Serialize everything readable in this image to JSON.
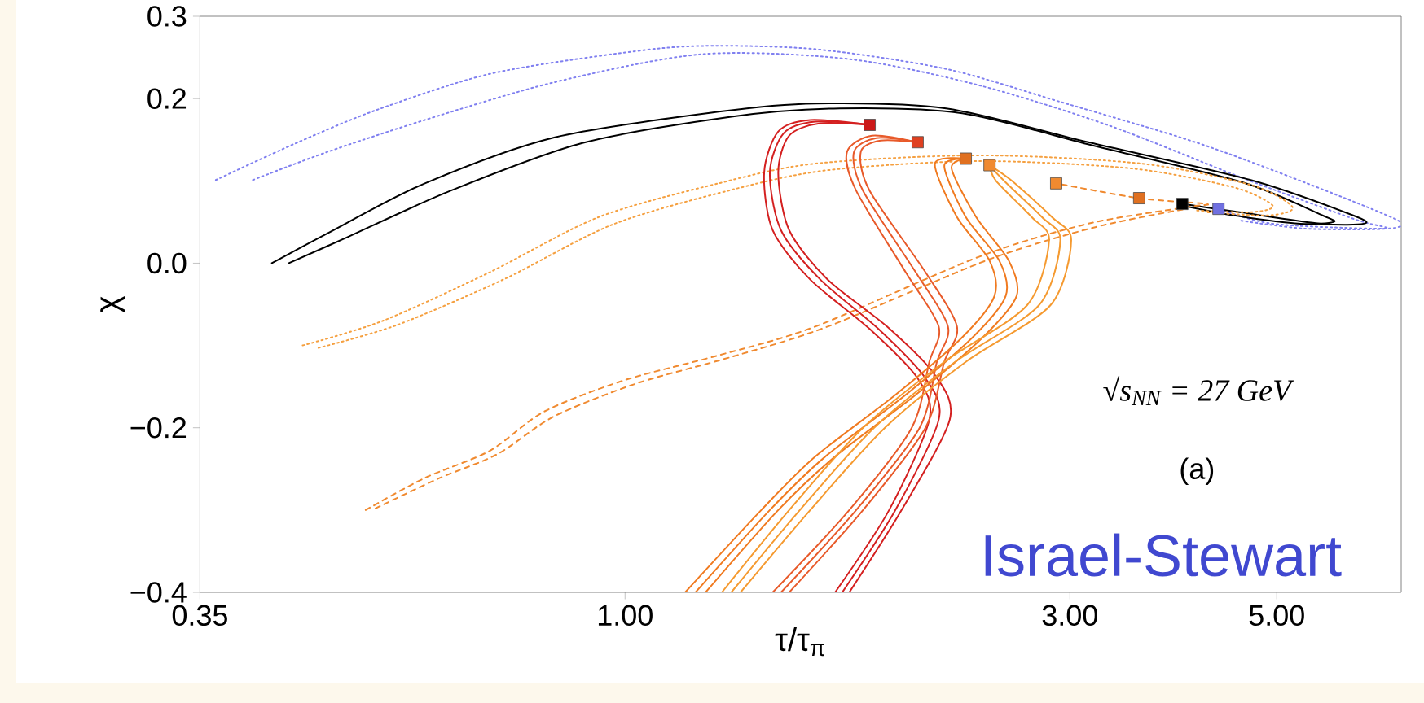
{
  "chart_data": {
    "type": "line",
    "xlabel": "τ/τ$_{π}$",
    "ylabel": "χ",
    "log": "x",
    "xlim": [
      0.35,
      6.8
    ],
    "ylim": [
      -0.4,
      0.3
    ],
    "xticks": [
      {
        "value": 0.35,
        "label": "0.35"
      },
      {
        "value": 1.0,
        "label": "1.00"
      },
      {
        "value": 3.0,
        "label": "3.00"
      },
      {
        "value": 5.0,
        "label": "5.00"
      }
    ],
    "yticks": [
      {
        "value": -0.4,
        "label": "−0.4"
      },
      {
        "value": -0.2,
        "label": "−0.2"
      },
      {
        "value": 0.0,
        "label": "0.0"
      },
      {
        "value": 0.2,
        "label": "0.2"
      },
      {
        "value": 0.3,
        "label": "0.3"
      }
    ],
    "annotations": [
      "√s$_{NN}$ = 27 GeV",
      "(a)",
      "Israel-Stewart"
    ],
    "series": [
      {
        "color": "#8080f0",
        "line_style": "dotted",
        "marker": "none",
        "x": [
          0.364,
          0.442,
          0.541,
          0.716,
          1.0,
          1.21,
          1.6,
          2.21,
          2.93,
          4.09,
          5.36,
          6.69,
          6.76,
          6.3,
          4.94,
          4.33
        ],
        "values": [
          0.101,
          0.145,
          0.186,
          0.23,
          0.256,
          0.264,
          0.26,
          0.236,
          0.196,
          0.147,
          0.098,
          0.054,
          0.044,
          0.042,
          0.048,
          0.066
        ]
      },
      {
        "color": "#8080f0",
        "line_style": "dotted",
        "marker": "none",
        "x": [
          0.399,
          0.479,
          0.61,
          0.841,
          1.21,
          1.74,
          2.4,
          3.31,
          4.56,
          6.04,
          6.54,
          5.36,
          4.56
        ],
        "values": [
          0.101,
          0.135,
          0.174,
          0.22,
          0.254,
          0.248,
          0.216,
          0.167,
          0.105,
          0.054,
          0.042,
          0.042,
          0.052
        ]
      },
      {
        "color": "#000000",
        "line_style": "solid",
        "marker": "none",
        "x": [
          0.418,
          0.479,
          0.61,
          0.841,
          1.26,
          1.6,
          2.21,
          3.14,
          4.69,
          6.04,
          6.2,
          5.58,
          4.56,
          3.96
        ],
        "values": [
          0.0,
          0.036,
          0.097,
          0.153,
          0.184,
          0.194,
          0.188,
          0.147,
          0.101,
          0.058,
          0.048,
          0.048,
          0.062,
          0.072
        ]
      },
      {
        "color": "#000000",
        "line_style": "solid",
        "marker": "none",
        "x": [
          0.436,
          0.5,
          0.65,
          0.9,
          1.3,
          1.7,
          2.3,
          3.2,
          4.6,
          5.6,
          5.75,
          5.3,
          4.5,
          3.96
        ],
        "values": [
          0.0,
          0.03,
          0.088,
          0.146,
          0.178,
          0.188,
          0.182,
          0.142,
          0.098,
          0.058,
          0.05,
          0.048,
          0.058,
          0.07
        ]
      },
      {
        "color": "#f5a040",
        "line_style": "dotted",
        "marker": "none",
        "x": [
          0.451,
          0.55,
          0.716,
          0.937,
          1.26,
          1.6,
          2.4,
          3.58,
          4.69,
          5.2,
          4.9,
          4.2
        ],
        "values": [
          -0.1,
          -0.07,
          -0.011,
          0.056,
          0.097,
          0.121,
          0.131,
          0.121,
          0.095,
          0.068,
          0.058,
          0.062
        ]
      },
      {
        "color": "#f5a040",
        "line_style": "dotted",
        "marker": "none",
        "x": [
          0.469,
          0.57,
          0.74,
          0.97,
          1.3,
          1.65,
          2.4,
          3.5,
          4.5,
          4.95,
          4.7,
          4.1
        ],
        "values": [
          -0.103,
          -0.075,
          -0.02,
          0.047,
          0.089,
          0.113,
          0.124,
          0.115,
          0.092,
          0.07,
          0.062,
          0.064
        ]
      },
      {
        "color": "#f08a30",
        "line_style": "dashed",
        "marker": "none",
        "x": [
          0.527,
          0.61,
          0.716,
          0.82,
          1.0,
          1.26,
          1.6,
          2.4,
          3.14,
          4.0,
          4.2,
          3.56,
          2.9
        ],
        "values": [
          -0.3,
          -0.261,
          -0.228,
          -0.18,
          -0.142,
          -0.112,
          -0.077,
          0.008,
          0.048,
          0.068,
          0.072,
          0.079,
          0.097
        ]
      },
      {
        "color": "#f08a30",
        "line_style": "dashed",
        "marker": "none",
        "x": [
          0.54,
          0.63,
          0.73,
          0.84,
          1.03,
          1.3,
          1.65,
          2.45,
          3.2,
          4.0
        ],
        "values": [
          -0.298,
          -0.262,
          -0.232,
          -0.186,
          -0.146,
          -0.114,
          -0.077,
          0.004,
          0.044,
          0.066
        ]
      },
      {
        "color": "#d42020",
        "line_style": "solid",
        "marker": "none",
        "x": [
          1.74,
          1.98,
          2.23,
          2.15,
          1.91,
          1.65,
          1.5,
          1.46,
          1.5,
          1.62,
          1.83
        ],
        "values": [
          -0.4,
          -0.3,
          -0.19,
          -0.136,
          -0.077,
          -0.02,
          0.04,
          0.11,
          0.155,
          0.17,
          0.168
        ]
      },
      {
        "color": "#d42020",
        "line_style": "solid",
        "marker": "none",
        "x": [
          1.71,
          1.95,
          2.17,
          2.1,
          1.87,
          1.62,
          1.47,
          1.43,
          1.48,
          1.6,
          1.83
        ],
        "values": [
          -0.4,
          -0.3,
          -0.19,
          -0.14,
          -0.08,
          -0.02,
          0.04,
          0.11,
          0.158,
          0.172,
          0.168
        ]
      },
      {
        "color": "#d42020",
        "line_style": "solid",
        "marker": "none",
        "x": [
          1.68,
          1.92,
          2.12,
          2.06,
          1.83,
          1.58,
          1.44,
          1.41,
          1.46,
          1.58,
          1.83
        ],
        "values": [
          -0.4,
          -0.3,
          -0.19,
          -0.14,
          -0.08,
          -0.02,
          0.04,
          0.11,
          0.16,
          0.174,
          0.168
        ]
      },
      {
        "color": "#e85a2a",
        "line_style": "solid",
        "marker": "none",
        "x": [
          1.5,
          1.8,
          2.1,
          2.2,
          2.27,
          2.1,
          1.83,
          1.79,
          1.88,
          2.06
        ],
        "values": [
          -0.4,
          -0.3,
          -0.2,
          -0.12,
          -0.077,
          -0.011,
          0.088,
          0.135,
          0.149,
          0.147
        ]
      },
      {
        "color": "#e85a2a",
        "line_style": "solid",
        "marker": "none",
        "x": [
          1.47,
          1.77,
          2.07,
          2.16,
          2.22,
          2.05,
          1.8,
          1.76,
          1.86,
          2.06
        ],
        "values": [
          -0.4,
          -0.3,
          -0.2,
          -0.12,
          -0.077,
          -0.011,
          0.088,
          0.135,
          0.152,
          0.147
        ]
      },
      {
        "color": "#e85a2a",
        "line_style": "solid",
        "marker": "none",
        "x": [
          1.44,
          1.74,
          2.03,
          2.12,
          2.17,
          2.0,
          1.77,
          1.73,
          1.84,
          2.06
        ],
        "values": [
          -0.4,
          -0.3,
          -0.2,
          -0.12,
          -0.077,
          -0.011,
          0.088,
          0.135,
          0.155,
          0.147
        ]
      },
      {
        "color": "#f07a20",
        "line_style": "solid",
        "marker": "none",
        "x": [
          1.16,
          1.4,
          1.6,
          1.95,
          2.3,
          2.49,
          2.46,
          2.27,
          2.15,
          2.32
        ],
        "values": [
          -0.4,
          -0.3,
          -0.235,
          -0.16,
          -0.09,
          -0.04,
          0.003,
          0.056,
          0.121,
          0.127
        ]
      },
      {
        "color": "#f07a20",
        "line_style": "solid",
        "marker": "none",
        "x": [
          1.19,
          1.43,
          1.64,
          2.0,
          2.36,
          2.56,
          2.52,
          2.32,
          2.2,
          2.32
        ],
        "values": [
          -0.4,
          -0.3,
          -0.235,
          -0.16,
          -0.09,
          -0.04,
          0.003,
          0.056,
          0.118,
          0.127
        ]
      },
      {
        "color": "#f07a20",
        "line_style": "solid",
        "marker": "none",
        "x": [
          1.22,
          1.46,
          1.68,
          2.05,
          2.42,
          2.63,
          2.58,
          2.38,
          2.24,
          2.32
        ],
        "values": [
          -0.4,
          -0.3,
          -0.235,
          -0.16,
          -0.09,
          -0.04,
          0.003,
          0.056,
          0.115,
          0.127
        ]
      },
      {
        "color": "#f59a30",
        "line_style": "solid",
        "marker": "none",
        "x": [
          1.27,
          1.5,
          1.8,
          2.2,
          2.7,
          2.85,
          2.73,
          2.5,
          2.46
        ],
        "values": [
          -0.4,
          -0.3,
          -0.2,
          -0.12,
          -0.051,
          0.028,
          0.056,
          0.1,
          0.119
        ]
      },
      {
        "color": "#f59a30",
        "line_style": "solid",
        "marker": "none",
        "x": [
          1.3,
          1.54,
          1.85,
          2.26,
          2.78,
          2.93,
          2.8,
          2.55,
          2.46
        ],
        "values": [
          -0.4,
          -0.3,
          -0.2,
          -0.12,
          -0.051,
          0.028,
          0.056,
          0.1,
          0.119
        ]
      },
      {
        "color": "#f59a30",
        "line_style": "solid",
        "marker": "none",
        "x": [
          1.33,
          1.58,
          1.9,
          2.32,
          2.86,
          3.01,
          2.87,
          2.6,
          2.46
        ],
        "values": [
          -0.4,
          -0.3,
          -0.2,
          -0.12,
          -0.051,
          0.028,
          0.056,
          0.1,
          0.119
        ]
      },
      {
        "type": "scatter",
        "marker": "square",
        "x": [
          1.83,
          2.06,
          2.32,
          2.46,
          2.9,
          3.56,
          3.96,
          4.33
        ],
        "values": [
          0.168,
          0.147,
          0.127,
          0.119,
          0.097,
          0.079,
          0.072,
          0.066
        ],
        "colors": [
          "#cc1818",
          "#e04020",
          "#e07020",
          "#f08a30",
          "#f08a30",
          "#e07020",
          "#000000",
          "#7070e0"
        ]
      }
    ]
  }
}
